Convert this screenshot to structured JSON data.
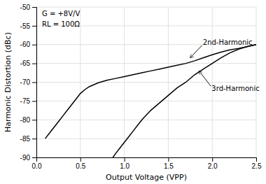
{
  "chart_data": {
    "type": "line",
    "xlabel": "Output Voltage (VPP)",
    "ylabel": "Harmonic Distortion (dBc)",
    "xlim": [
      0,
      2.5
    ],
    "ylim": [
      -90,
      -50
    ],
    "xticks": [
      {
        "value": 0,
        "label": "0.0"
      },
      0.5,
      {
        "value": 1.0,
        "label": "1.0"
      },
      1.5,
      {
        "value": 2.0,
        "label": "2.0"
      },
      2.5
    ],
    "yticks": [
      -90,
      -85,
      -80,
      -75,
      -70,
      -65,
      -60,
      -55,
      -50
    ],
    "grid": true,
    "series": [
      {
        "color": "#000000",
        "x": [
          0.1,
          0.15,
          0.2,
          0.25,
          0.3,
          0.35,
          0.4,
          0.45,
          0.5,
          0.55,
          0.6,
          0.7,
          0.8,
          0.9,
          1.0,
          1.1,
          1.2,
          1.3,
          1.4,
          1.5,
          1.6,
          1.7,
          1.8,
          1.9,
          2.0,
          2.1,
          2.2,
          2.3,
          2.4,
          2.5
        ],
        "values": [
          -85.0,
          -83.5,
          -82.0,
          -80.5,
          -79.0,
          -77.5,
          -76.0,
          -74.5,
          -73.0,
          -72.0,
          -71.2,
          -70.2,
          -69.5,
          -69.0,
          -68.5,
          -68.0,
          -67.5,
          -67.0,
          -66.5,
          -66.0,
          -65.5,
          -65.0,
          -64.3,
          -63.5,
          -62.7,
          -62.0,
          -61.4,
          -61.0,
          -60.5,
          -60.0
        ]
      },
      {
        "color": "#000000",
        "x": [
          0.87,
          0.9,
          0.95,
          1.0,
          1.05,
          1.1,
          1.15,
          1.2,
          1.3,
          1.4,
          1.5,
          1.6,
          1.7,
          1.8,
          1.9,
          2.0,
          2.1,
          2.2,
          2.3,
          2.4,
          2.5
        ],
        "values": [
          -90.0,
          -89.0,
          -87.5,
          -86.0,
          -84.5,
          -83.0,
          -81.5,
          -80.0,
          -77.5,
          -75.5,
          -73.5,
          -71.5,
          -70.0,
          -68.0,
          -66.5,
          -65.0,
          -63.5,
          -62.2,
          -61.2,
          -60.5,
          -60.0
        ]
      }
    ],
    "annotations": [
      {
        "text": "G = +8V/V"
      },
      {
        "text": "RL = 100Ω"
      },
      {
        "text": "2nd-Harmonic",
        "x": 1.75,
        "y": -63.5
      },
      {
        "text": "3rd-Harmonic",
        "x": 1.85,
        "y": -67.0
      }
    ]
  }
}
